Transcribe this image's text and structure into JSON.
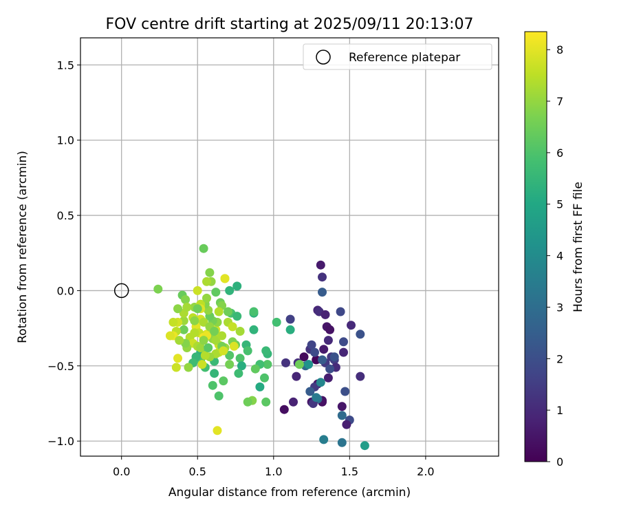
{
  "chart_data": {
    "type": "scatter",
    "title": "FOV centre drift starting at 2025/09/11 20:13:07",
    "xlabel": "Angular distance from reference (arcmin)",
    "ylabel": "Rotation from reference (arcmin)",
    "xlim": [
      -0.27,
      2.48
    ],
    "ylim": [
      -1.1,
      1.68
    ],
    "xticks": [
      0.0,
      0.5,
      1.0,
      1.5,
      2.0
    ],
    "xtick_labels": [
      "0.0",
      "0.5",
      "1.0",
      "1.5",
      "2.0"
    ],
    "yticks": [
      -1.0,
      -0.5,
      0.0,
      0.5,
      1.0,
      1.5
    ],
    "ytick_labels": [
      "−1.0",
      "−0.5",
      "0.0",
      "0.5",
      "1.0",
      "1.5"
    ],
    "grid": true,
    "legend": {
      "position": "top-right",
      "entries": [
        "Reference platepar"
      ]
    },
    "reference_point": {
      "x": 0.0,
      "y": 0.0
    },
    "colorbar": {
      "label": "Hours from first FF file",
      "colormap": "viridis",
      "range": [
        0,
        8.35
      ],
      "ticks": [
        0,
        1,
        2,
        3,
        4,
        5,
        6,
        7,
        8
      ],
      "tick_labels": [
        "0",
        "1",
        "2",
        "3",
        "4",
        "5",
        "6",
        "7",
        "8"
      ]
    },
    "points": [
      [
        1.32,
        -0.74,
        0.3
      ],
      [
        1.28,
        -0.46,
        0.1
      ],
      [
        1.35,
        -0.24,
        0.5
      ],
      [
        1.37,
        -0.26,
        0.4
      ],
      [
        1.33,
        -0.39,
        0.6
      ],
      [
        1.2,
        -0.44,
        0.2
      ],
      [
        1.07,
        -0.79,
        0.3
      ],
      [
        1.29,
        -0.62,
        0.5
      ],
      [
        1.31,
        0.17,
        0.6
      ],
      [
        1.32,
        0.09,
        1.2
      ],
      [
        1.29,
        -0.13,
        0.9
      ],
      [
        1.3,
        -0.14,
        1.1
      ],
      [
        1.34,
        -0.16,
        0.8
      ],
      [
        1.36,
        -0.33,
        1.0
      ],
      [
        1.38,
        -0.44,
        1.3
      ],
      [
        1.4,
        -0.46,
        1.5
      ],
      [
        1.41,
        -0.51,
        1.0
      ],
      [
        1.36,
        -0.58,
        0.7
      ],
      [
        1.34,
        -0.48,
        1.4
      ],
      [
        1.24,
        -0.39,
        1.2
      ],
      [
        1.25,
        -0.36,
        1.7
      ],
      [
        1.27,
        -0.41,
        1.9
      ],
      [
        1.11,
        -0.19,
        1.6
      ],
      [
        1.08,
        -0.48,
        1.2
      ],
      [
        1.15,
        -0.57,
        0.9
      ],
      [
        1.16,
        -0.48,
        1.1
      ],
      [
        1.13,
        -0.74,
        0.8
      ],
      [
        1.25,
        -0.74,
        0.5
      ],
      [
        1.27,
        -0.64,
        1.4
      ],
      [
        1.44,
        -0.14,
        1.8
      ],
      [
        1.51,
        -0.23,
        1.0
      ],
      [
        1.46,
        -0.34,
        1.9
      ],
      [
        1.46,
        -0.41,
        0.9
      ],
      [
        1.47,
        -0.67,
        2.0
      ],
      [
        1.5,
        -0.86,
        1.9
      ],
      [
        1.48,
        -0.89,
        0.7
      ],
      [
        1.45,
        -0.77,
        0.5
      ],
      [
        1.45,
        -0.83,
        2.9
      ],
      [
        1.57,
        -0.29,
        2.1
      ],
      [
        1.57,
        -0.57,
        1.1
      ],
      [
        1.32,
        -0.73,
        0.4
      ],
      [
        1.32,
        -0.01,
        2.4
      ],
      [
        1.37,
        -0.52,
        2.0
      ],
      [
        1.29,
        -0.72,
        3.0
      ],
      [
        1.24,
        -0.67,
        2.4
      ],
      [
        1.26,
        -0.75,
        1.3
      ],
      [
        1.4,
        -0.44,
        2.1
      ],
      [
        1.32,
        -0.46,
        2.4
      ],
      [
        1.33,
        -0.99,
        3.5
      ],
      [
        1.45,
        -1.01,
        3.2
      ],
      [
        1.6,
        -1.03,
        4.6
      ],
      [
        1.21,
        -0.5,
        2.8
      ],
      [
        1.28,
        -0.71,
        3.4
      ],
      [
        1.31,
        -0.61,
        3.8
      ],
      [
        1.23,
        -0.49,
        4.2
      ],
      [
        1.11,
        -0.26,
        5.2
      ],
      [
        1.02,
        -0.21,
        5.8
      ],
      [
        1.17,
        -0.49,
        6.5
      ],
      [
        0.96,
        -0.42,
        5.5
      ],
      [
        0.95,
        -0.4,
        5.6
      ],
      [
        0.96,
        -0.49,
        6.1
      ],
      [
        0.94,
        -0.58,
        6.0
      ],
      [
        0.91,
        -0.49,
        5.8
      ],
      [
        0.88,
        -0.52,
        6.3
      ],
      [
        0.91,
        -0.64,
        5.1
      ],
      [
        0.95,
        -0.74,
        6.2
      ],
      [
        0.86,
        -0.73,
        6.8
      ],
      [
        0.83,
        -0.74,
        6.5
      ],
      [
        0.87,
        -0.15,
        5.3
      ],
      [
        0.87,
        -0.14,
        5.9
      ],
      [
        0.87,
        -0.26,
        5.4
      ],
      [
        0.82,
        -0.36,
        5.5
      ],
      [
        0.83,
        -0.4,
        5.9
      ],
      [
        0.78,
        -0.45,
        6.0
      ],
      [
        0.79,
        -0.5,
        5.2
      ],
      [
        0.77,
        -0.55,
        5.7
      ],
      [
        0.76,
        0.03,
        5.3
      ],
      [
        0.71,
        0.0,
        5.4
      ],
      [
        0.72,
        -0.15,
        5.9
      ],
      [
        0.76,
        -0.17,
        5.6
      ],
      [
        0.75,
        -0.36,
        6.4
      ],
      [
        0.71,
        -0.43,
        6.1
      ],
      [
        0.71,
        -0.49,
        6.6
      ],
      [
        0.67,
        -0.6,
        6.2
      ],
      [
        0.64,
        -0.7,
        6.0
      ],
      [
        0.6,
        -0.63,
        6.0
      ],
      [
        0.61,
        -0.55,
        5.5
      ],
      [
        0.61,
        -0.47,
        5.6
      ],
      [
        0.55,
        -0.51,
        5.8
      ],
      [
        0.52,
        -0.46,
        6.0
      ],
      [
        0.52,
        -0.41,
        5.3
      ],
      [
        0.49,
        -0.44,
        5.5
      ],
      [
        0.47,
        -0.48,
        5.7
      ],
      [
        0.44,
        -0.51,
        7.0
      ],
      [
        0.54,
        0.28,
        6.4
      ],
      [
        0.58,
        0.12,
        6.8
      ],
      [
        0.59,
        0.06,
        7.0
      ],
      [
        0.56,
        0.06,
        7.3
      ],
      [
        0.62,
        -0.01,
        6.3
      ],
      [
        0.65,
        -0.08,
        6.5
      ],
      [
        0.66,
        -0.1,
        6.8
      ],
      [
        0.68,
        0.08,
        7.4
      ],
      [
        0.68,
        0.08,
        8.0
      ],
      [
        0.7,
        -0.14,
        6.5
      ],
      [
        0.7,
        -0.21,
        7.3
      ],
      [
        0.73,
        -0.24,
        7.6
      ],
      [
        0.78,
        -0.27,
        7.2
      ],
      [
        0.73,
        -0.34,
        6.7
      ],
      [
        0.74,
        -0.37,
        7.9
      ],
      [
        0.68,
        -0.38,
        7.1
      ],
      [
        0.64,
        -0.36,
        7.7
      ],
      [
        0.61,
        -0.31,
        7.5
      ],
      [
        0.62,
        -0.26,
        7.8
      ],
      [
        0.63,
        -0.21,
        6.9
      ],
      [
        0.6,
        -0.2,
        6.6
      ],
      [
        0.58,
        -0.17,
        6.4
      ],
      [
        0.57,
        -0.13,
        7.0
      ],
      [
        0.55,
        -0.09,
        6.8
      ],
      [
        0.52,
        -0.1,
        7.2
      ],
      [
        0.52,
        -0.19,
        7.8
      ],
      [
        0.48,
        -0.11,
        7.0
      ],
      [
        0.47,
        -0.18,
        7.5
      ],
      [
        0.49,
        -0.24,
        8.0
      ],
      [
        0.45,
        -0.31,
        7.4
      ],
      [
        0.47,
        -0.35,
        7.7
      ],
      [
        0.5,
        -0.37,
        7.3
      ],
      [
        0.52,
        -0.38,
        7.1
      ],
      [
        0.55,
        -0.31,
        8.2
      ],
      [
        0.56,
        -0.29,
        7.9
      ],
      [
        0.58,
        -0.3,
        7.4
      ],
      [
        0.6,
        -0.32,
        7.0
      ],
      [
        0.62,
        -0.33,
        7.2
      ],
      [
        0.64,
        -0.41,
        7.6
      ],
      [
        0.62,
        -0.42,
        7.3
      ],
      [
        0.58,
        -0.44,
        7.1
      ],
      [
        0.53,
        -0.49,
        7.7
      ],
      [
        0.55,
        -0.43,
        7.4
      ],
      [
        0.43,
        -0.38,
        7.0
      ],
      [
        0.42,
        -0.35,
        6.8
      ],
      [
        0.41,
        -0.26,
        6.5
      ],
      [
        0.41,
        -0.2,
        7.1
      ],
      [
        0.41,
        -0.15,
        7.3
      ],
      [
        0.37,
        -0.12,
        6.9
      ],
      [
        0.37,
        -0.21,
        7.8
      ],
      [
        0.36,
        -0.27,
        7.5
      ],
      [
        0.34,
        -0.3,
        8.1
      ],
      [
        0.32,
        -0.3,
        7.9
      ],
      [
        0.34,
        -0.21,
        7.6
      ],
      [
        0.38,
        -0.33,
        7.2
      ],
      [
        0.37,
        -0.45,
        8.0
      ],
      [
        0.36,
        -0.51,
        7.7
      ],
      [
        0.4,
        -0.03,
        6.4
      ],
      [
        0.42,
        -0.06,
        6.8
      ],
      [
        0.43,
        -0.11,
        7.2
      ],
      [
        0.48,
        -0.2,
        6.9
      ],
      [
        0.51,
        -0.28,
        7.6
      ],
      [
        0.54,
        -0.21,
        7.3
      ],
      [
        0.54,
        -0.31,
        8.2
      ],
      [
        0.56,
        -0.3,
        8.1
      ],
      [
        0.52,
        -0.09,
        7.5
      ],
      [
        0.5,
        0.0,
        7.7
      ],
      [
        0.52,
        -0.12,
        7.9
      ],
      [
        0.56,
        -0.05,
        7.0
      ],
      [
        0.5,
        -0.12,
        6.5
      ],
      [
        0.24,
        0.01,
        6.7
      ],
      [
        0.63,
        -0.93,
        8.0
      ],
      [
        0.58,
        -0.24,
        7.0
      ],
      [
        0.61,
        -0.27,
        6.6
      ],
      [
        0.64,
        -0.14,
        7.4
      ],
      [
        0.66,
        -0.37,
        6.6
      ],
      [
        0.67,
        -0.4,
        7.8
      ],
      [
        0.66,
        -0.3,
        7.3
      ],
      [
        0.57,
        -0.38,
        6.2
      ],
      [
        0.54,
        -0.33,
        6.9
      ],
      [
        0.48,
        -0.28,
        7.4
      ]
    ]
  }
}
